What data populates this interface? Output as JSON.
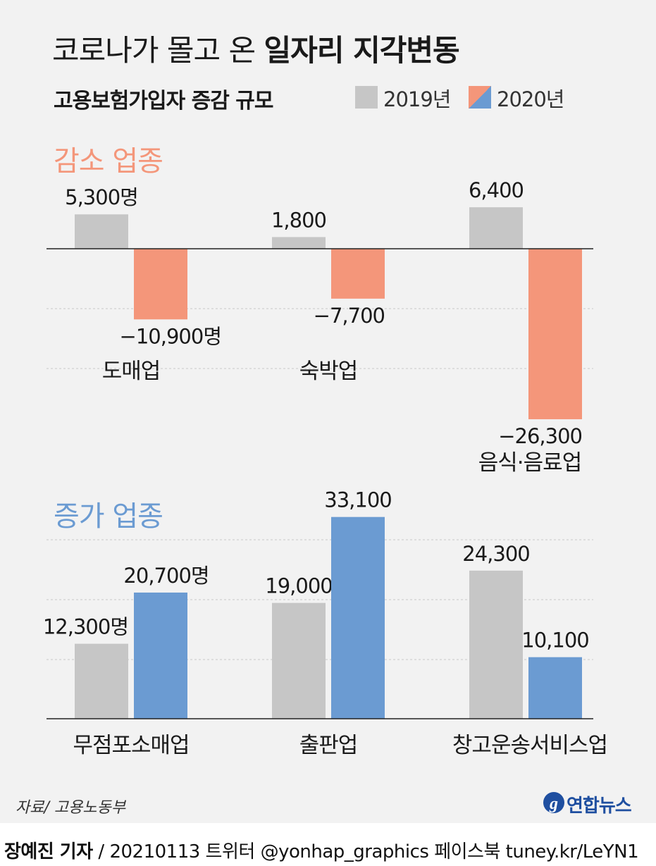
{
  "title": {
    "normal": "코로나가 몰고 온",
    "bold": "일자리 지각변동"
  },
  "subtitle": "고용보험가입자 증감 규모",
  "legend": [
    {
      "label": "2019년",
      "color": "#c6c6c6"
    },
    {
      "label": "2020년",
      "colors": [
        "#f4967a",
        "#6b9bd2"
      ]
    }
  ],
  "colors": {
    "y2019": "#c6c6c6",
    "decrease": "#f4967a",
    "increase": "#6b9bd2",
    "decrease_head": "#f4967a",
    "increase_head": "#6b9bd2"
  },
  "chart_data": [
    {
      "type": "bar",
      "title": "감소 업종",
      "categories": [
        "도매업",
        "숙박업",
        "음식·음료업"
      ],
      "series": [
        {
          "name": "2019년",
          "values": [
            5300,
            1800,
            6400
          ]
        },
        {
          "name": "2020년",
          "values": [
            -10900,
            -7700,
            -26300
          ]
        }
      ],
      "value_labels": {
        "2019년": [
          "5,300명",
          "1,800",
          "6,400"
        ],
        "2020년": [
          "−10,900명",
          "−7,700",
          "−26,300"
        ]
      },
      "ylim": [
        -30000,
        10000
      ],
      "grid": true
    },
    {
      "type": "bar",
      "title": "증가 업종",
      "categories": [
        "무점포소매업",
        "출판업",
        "창고운송서비스업"
      ],
      "series": [
        {
          "name": "2019년",
          "values": [
            12300,
            19000,
            24300
          ]
        },
        {
          "name": "2020년",
          "values": [
            20700,
            33100,
            10100
          ]
        }
      ],
      "value_labels": {
        "2019년": [
          "12,300명",
          "19,000",
          "24,300"
        ],
        "2020년": [
          "20,700명",
          "33,100",
          "10,100"
        ]
      },
      "ylim": [
        0,
        40000
      ],
      "grid": true
    }
  ],
  "footer": {
    "source": "자료/ 고용노동부",
    "logo": "연합뉴스",
    "reporter": "장예진 기자",
    "credit": " / 20210113 트위터 @yonhap_graphics  페이스북 tuney.kr/LeYN1"
  }
}
